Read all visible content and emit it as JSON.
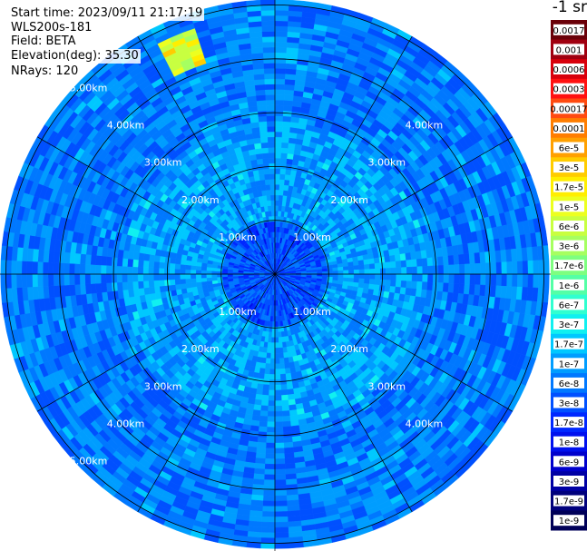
{
  "header": {
    "start_time": "Start time: 2023/09/11 21:17:19",
    "instrument": "WLS200s-181",
    "field": "Field: BETA",
    "elevation": "Elevation(deg): 35.30",
    "nrays": "NRays: 120"
  },
  "colorbar": {
    "unit_label": "-1 sr",
    "ticks": [
      "0.0017",
      "0.001",
      "0.0006",
      "0.0003",
      "0.00017",
      "0.0001",
      "6e-5",
      "3e-5",
      "1.7e-5",
      "1e-5",
      "6e-6",
      "3e-6",
      "1.7e-6",
      "1e-6",
      "6e-7",
      "3e-7",
      "1.7e-7",
      "1e-7",
      "6e-8",
      "3e-8",
      "1.7e-8",
      "1e-8",
      "6e-9",
      "3e-9",
      "1.7e-9",
      "1e-9"
    ],
    "colors": [
      "#6a0008",
      "#a00010",
      "#d8000c",
      "#ff1010",
      "#ff4a10",
      "#ff7d00",
      "#ffa000",
      "#ffcc00",
      "#ffee00",
      "#ecff20",
      "#c8ff40",
      "#a6ff60",
      "#7dff80",
      "#54ffa6",
      "#30ffd0",
      "#10f0f0",
      "#00c8ff",
      "#009dff",
      "#0078ff",
      "#0050ff",
      "#0028ff",
      "#0010ee",
      "#0000cc",
      "#0000a4",
      "#00007c",
      "#000058"
    ]
  },
  "chart_data": {
    "type": "heatmap",
    "projection": "polar PPI (plan position indicator)",
    "field": "BETA",
    "units": "sr^-1",
    "colorbar_min": "1e-9",
    "colorbar_max": "0.0017",
    "range_rings_km": [
      1,
      2,
      3,
      4,
      5
    ],
    "ring_labels": [
      "1.00km",
      "2.00km",
      "3.00km",
      "4.00km",
      "5.00km"
    ],
    "spokes_deg": [
      0,
      30,
      60,
      90,
      120,
      150,
      180,
      210,
      240,
      270,
      300,
      330
    ],
    "zones": [
      {
        "from_km": 0.0,
        "to_km": 0.9,
        "typical_value": "3e-8"
      },
      {
        "from_km": 0.9,
        "to_km": 2.8,
        "typical_value": "1e-7"
      },
      {
        "from_km": 2.8,
        "to_km": 5.1,
        "typical_value": "6e-8"
      }
    ],
    "hotspots": [
      {
        "azimuth_deg_from_north": -22,
        "range_km": 4.5,
        "peak_value": "3e-5"
      },
      {
        "azimuth_deg_from_north": 7,
        "range_km": 4.2,
        "peak_value": "1.7e-7"
      }
    ]
  }
}
